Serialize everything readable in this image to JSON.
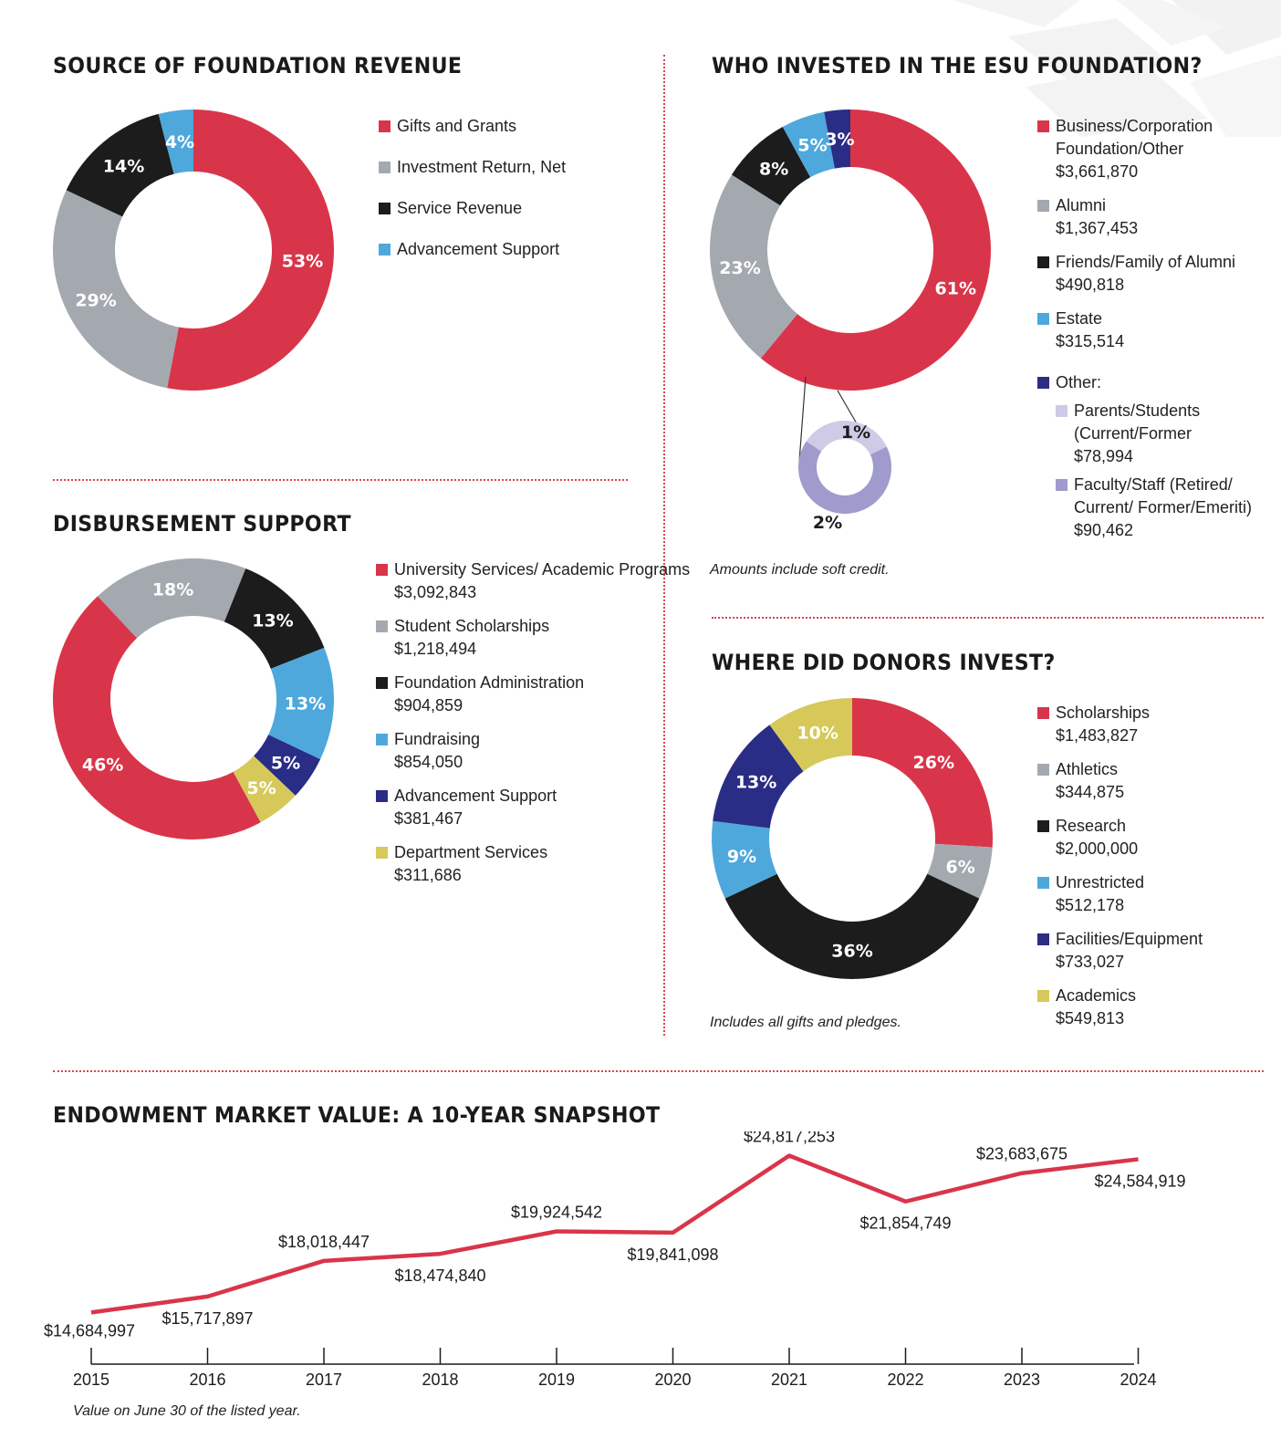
{
  "colors": {
    "red": "#d9354a",
    "gray": "#a4a9b0",
    "black": "#1c1c1c",
    "blue": "#4ea8dc",
    "navy": "#2a2d86",
    "yellow": "#d6c95a",
    "lavender_light": "#cfcbe6",
    "lavender": "#9f9bcc"
  },
  "chart_data": [
    {
      "id": "revenue",
      "type": "pie",
      "title": "SOURCE OF FOUNDATION REVENUE",
      "slices": [
        {
          "label": "Gifts and Grants",
          "value": 53,
          "display": "53%",
          "color": "#d9354a"
        },
        {
          "label": "Investment Return, Net",
          "value": 29,
          "display": "29%",
          "color": "#a4a9b0"
        },
        {
          "label": "Service Revenue",
          "value": 14,
          "display": "14%",
          "color": "#1c1c1c"
        },
        {
          "label": "Advancement Support",
          "value": 4,
          "display": "4%",
          "color": "#4ea8dc"
        }
      ]
    },
    {
      "id": "investors",
      "type": "pie",
      "title": "WHO INVESTED IN THE ESU FOUNDATION?",
      "note": "Amounts include soft credit.",
      "slices": [
        {
          "label": "Business/Corporation Foundation/Other",
          "amount": "$3,661,870",
          "value": 61,
          "display": "61%",
          "color": "#d9354a"
        },
        {
          "label": "Alumni",
          "amount": "$1,367,453",
          "value": 23,
          "display": "23%",
          "color": "#a4a9b0"
        },
        {
          "label": "Friends/Family of Alumni",
          "amount": "$490,818",
          "value": 8,
          "display": "8%",
          "color": "#1c1c1c"
        },
        {
          "label": "Estate",
          "amount": "$315,514",
          "value": 5,
          "display": "5%",
          "color": "#4ea8dc"
        },
        {
          "label": "Other:",
          "value": 3,
          "display": "3%",
          "color": "#2a2d86"
        }
      ],
      "other_breakdown": [
        {
          "label": "Parents/Students (Current/Former",
          "amount": "$78,994",
          "value": 1,
          "display": "1%",
          "color": "#cfcbe6"
        },
        {
          "label": "Faculty/Staff (Retired/ Current/ Former/Emeriti)",
          "amount": "$90,462",
          "value": 2,
          "display": "2%",
          "color": "#9f9bcc"
        }
      ]
    },
    {
      "id": "disbursement",
      "type": "pie",
      "title": "DISBURSEMENT SUPPORT",
      "slices": [
        {
          "label": "University Services/ Academic Programs",
          "amount": "$3,092,843",
          "value": 46,
          "display": "46%",
          "color": "#d9354a"
        },
        {
          "label": "Student Scholarships",
          "amount": "$1,218,494",
          "value": 18,
          "display": "18%",
          "color": "#a4a9b0"
        },
        {
          "label": "Foundation Administration",
          "amount": "$904,859",
          "value": 13,
          "display": "13%",
          "color": "#1c1c1c"
        },
        {
          "label": "Fundraising",
          "amount": "$854,050",
          "value": 13,
          "display": "13%",
          "color": "#4ea8dc"
        },
        {
          "label": "Advancement Support",
          "amount": "$381,467",
          "value": 5,
          "display": "5%",
          "color": "#2a2d86"
        },
        {
          "label": "Department Services",
          "amount": "$311,686",
          "value": 5,
          "display": "5%",
          "color": "#d6c95a"
        }
      ]
    },
    {
      "id": "donors",
      "type": "pie",
      "title": "WHERE DID DONORS INVEST?",
      "note": "Includes all gifts and pledges.",
      "slices": [
        {
          "label": "Scholarships",
          "amount": "$1,483,827",
          "value": 26,
          "display": "26%",
          "color": "#d9354a"
        },
        {
          "label": "Athletics",
          "amount": "$344,875",
          "value": 6,
          "display": "6%",
          "color": "#a4a9b0"
        },
        {
          "label": "Research",
          "amount": "$2,000,000",
          "value": 36,
          "display": "36%",
          "color": "#1c1c1c"
        },
        {
          "label": "Unrestricted",
          "amount": "$512,178",
          "value": 9,
          "display": "9%",
          "color": "#4ea8dc"
        },
        {
          "label": "Facilities/Equipment",
          "amount": "$733,027",
          "value": 13,
          "display": "13%",
          "color": "#2a2d86"
        },
        {
          "label": "Academics",
          "amount": "$549,813",
          "value": 10,
          "display": "10%",
          "color": "#d6c95a"
        }
      ]
    },
    {
      "id": "endowment",
      "type": "line",
      "title": "ENDOWMENT MARKET VALUE: A 10-YEAR SNAPSHOT",
      "note": "Value on June 30 of the listed year.",
      "color": "#d9354a",
      "categories": [
        "2015",
        "2016",
        "2017",
        "2018",
        "2019",
        "2020",
        "2021",
        "2022",
        "2023",
        "2024"
      ],
      "values": [
        14684997,
        15717897,
        18018447,
        18474840,
        19924542,
        19841098,
        24817253,
        21854749,
        23683675,
        24584919
      ],
      "value_labels": [
        "$14,684,997",
        "$15,717,897",
        "$18,018,447",
        "$18,474,840",
        "$19,924,542",
        "$19,841,098",
        "$24,817,253",
        "$21,854,749",
        "$23,683,675",
        "$24,584,919"
      ]
    }
  ]
}
